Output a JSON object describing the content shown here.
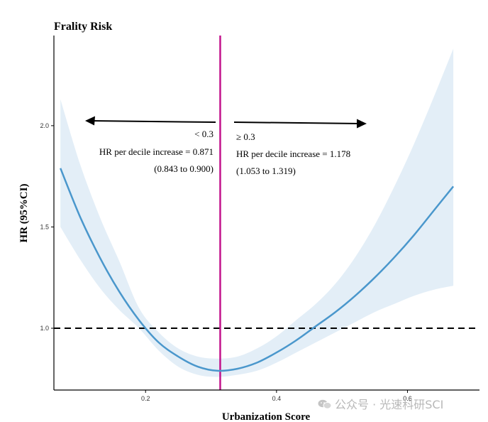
{
  "chart_data": {
    "type": "line",
    "title": "Frality Risk",
    "xlabel": "Urbanization Score",
    "ylabel": "HR (95%CI)",
    "xlim": [
      0.06,
      0.71
    ],
    "ylim": [
      0.695,
      2.445
    ],
    "x_ticks": [
      0.2,
      0.4,
      0.6
    ],
    "x_tick_labels": [
      "0.2",
      "0.4",
      "0.6"
    ],
    "y_ticks": [
      1.0,
      1.5,
      2.0
    ],
    "y_tick_labels": [
      "1.0",
      "1.5",
      "2.0"
    ],
    "grid": false,
    "legend": "none",
    "reference_line_y": 1.0,
    "threshold_x": 0.314,
    "series": [
      {
        "x": [
          0.07,
          0.1,
          0.13,
          0.16,
          0.19,
          0.22,
          0.25,
          0.28,
          0.31,
          0.34,
          0.37,
          0.4,
          0.43,
          0.46,
          0.49,
          0.52,
          0.55,
          0.58,
          0.61,
          0.64,
          0.67
        ],
        "values": [
          1.79,
          1.55,
          1.35,
          1.18,
          1.04,
          0.93,
          0.86,
          0.81,
          0.79,
          0.8,
          0.83,
          0.88,
          0.94,
          1.01,
          1.08,
          1.16,
          1.25,
          1.35,
          1.46,
          1.58,
          1.7
        ],
        "lower": [
          1.5,
          1.34,
          1.2,
          1.09,
          1.0,
          0.89,
          0.81,
          0.77,
          0.76,
          0.77,
          0.79,
          0.83,
          0.88,
          0.93,
          0.98,
          1.03,
          1.08,
          1.12,
          1.16,
          1.19,
          1.21
        ],
        "upper": [
          2.13,
          1.81,
          1.55,
          1.33,
          1.1,
          0.98,
          0.9,
          0.86,
          0.85,
          0.86,
          0.9,
          0.96,
          1.04,
          1.12,
          1.22,
          1.35,
          1.51,
          1.7,
          1.91,
          2.14,
          2.38
        ]
      }
    ],
    "annotations": {
      "left": {
        "line1": "< 0.3",
        "line2": "HR per decile increase = 0.871",
        "line3": "(0.843 to 0.900)"
      },
      "right": {
        "line1": "≥ 0.3",
        "line2": "HR per decile increase = 1.178",
        "line3": "(1.053 to 1.319)"
      }
    },
    "colors": {
      "curve": "#4a97cc",
      "band": "#e3eef7",
      "threshold": "#c2128c",
      "reference": "#000000"
    }
  },
  "watermark": "公众号 · 光速科研SCI"
}
